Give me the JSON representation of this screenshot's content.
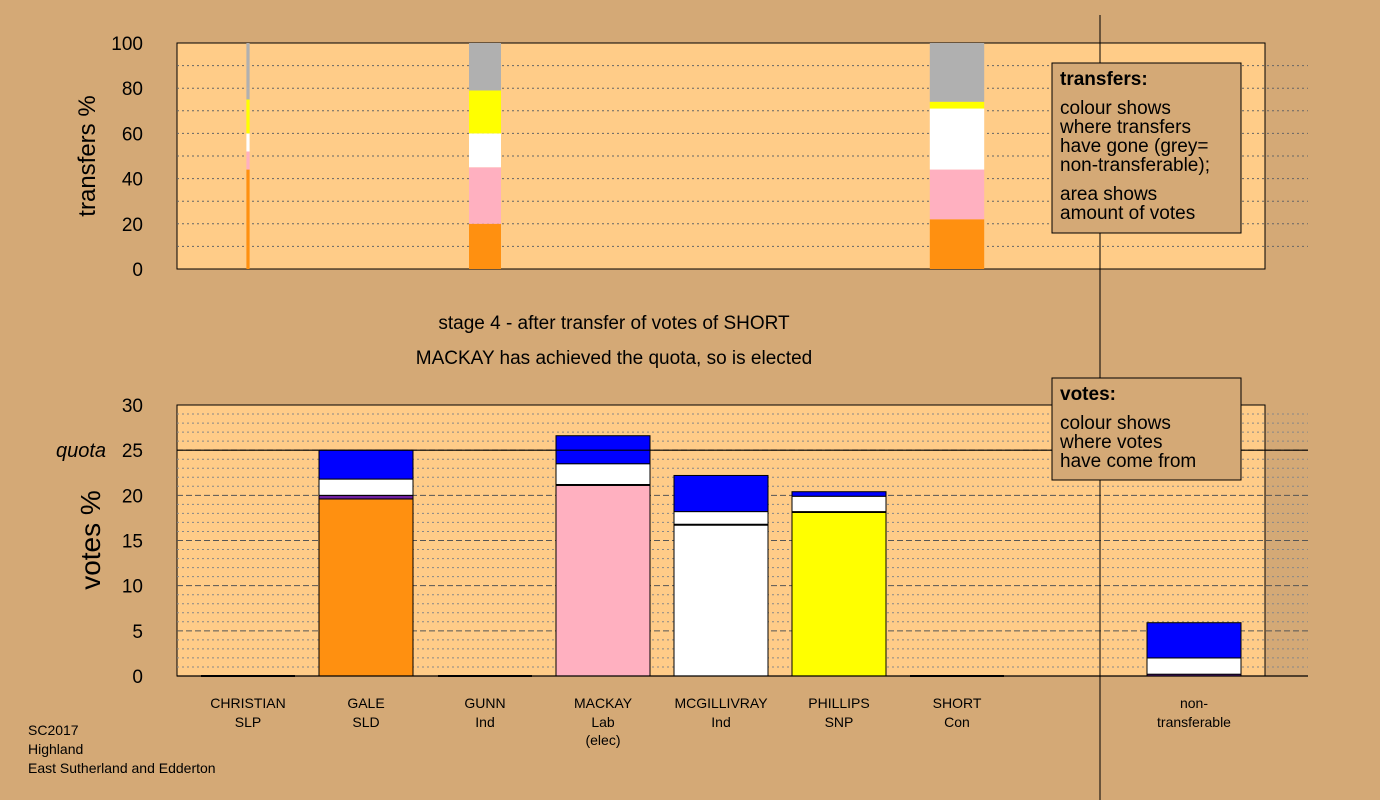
{
  "colors": {
    "page_bg": "#d4a976",
    "plot_bg": "#ffcc88",
    "Lab": "#ffb0c0",
    "SLD": "#ff9010",
    "SNP": "#ffff00",
    "Ind": "#ffffff",
    "Con": "#0000ff",
    "SLP": "#7020a0",
    "nontransferable": "#b0b0b0"
  },
  "footer": [
    "SC2017",
    "Highland",
    "East Sutherland and Edderton"
  ],
  "stage_line1": "stage 4 - after transfer of votes of SHORT",
  "stage_line2": "MACKAY has achieved the quota, so is elected",
  "legend_transfers": {
    "title": "transfers:",
    "lines": [
      "colour shows",
      "where transfers",
      "have gone (grey=",
      "non-transferable);",
      "area shows",
      "amount of votes"
    ]
  },
  "legend_votes": {
    "title": "votes:",
    "lines": [
      "colour shows",
      "where votes",
      "have come from"
    ]
  },
  "chart_data": [
    {
      "type": "bar",
      "stacked": true,
      "ylabel": "transfers %",
      "ylim": [
        0,
        100
      ],
      "yticks": [
        0,
        20,
        40,
        60,
        80,
        100
      ],
      "grid": true,
      "note": "bar width shows amount of votes transferred",
      "bars": [
        {
          "category": "CHRISTIAN",
          "relative_width": 0.1,
          "segments": [
            {
              "to": "GALE",
              "color": "SLD",
              "value": 44
            },
            {
              "to": "MACKAY",
              "color": "Lab",
              "value": 8
            },
            {
              "to": "MCGILLIVRAY",
              "color": "Ind",
              "value": 8
            },
            {
              "to": "PHILLIPS",
              "color": "SNP",
              "value": 15
            },
            {
              "to": "non-transferable",
              "color": "nontransferable",
              "value": 25
            }
          ]
        },
        {
          "category": "GUNN",
          "relative_width": 1,
          "segments": [
            {
              "to": "GALE",
              "color": "SLD",
              "value": 20
            },
            {
              "to": "MACKAY",
              "color": "Lab",
              "value": 25
            },
            {
              "to": "MCGILLIVRAY",
              "color": "Ind",
              "value": 15
            },
            {
              "to": "PHILLIPS",
              "color": "SNP",
              "value": 19
            },
            {
              "to": "non-transferable",
              "color": "nontransferable",
              "value": 21
            }
          ]
        },
        {
          "category": "SHORT",
          "relative_width": 1.7,
          "segments": [
            {
              "to": "GALE",
              "color": "SLD",
              "value": 22
            },
            {
              "to": "MACKAY",
              "color": "Lab",
              "value": 22
            },
            {
              "to": "MCGILLIVRAY",
              "color": "Ind",
              "value": 27
            },
            {
              "to": "PHILLIPS",
              "color": "SNP",
              "value": 3
            },
            {
              "to": "non-transferable",
              "color": "nontransferable",
              "value": 26
            }
          ]
        }
      ]
    },
    {
      "type": "bar",
      "stacked": true,
      "ylabel": "votes %",
      "ylim": [
        0,
        30
      ],
      "yticks": [
        0,
        5,
        10,
        15,
        20,
        25,
        30
      ],
      "quota": 25,
      "quota_label": "quota",
      "grid": true,
      "categories": [
        {
          "name": "CHRISTIAN",
          "party": "SLP",
          "extra": ""
        },
        {
          "name": "GALE",
          "party": "SLD",
          "extra": ""
        },
        {
          "name": "GUNN",
          "party": "Ind",
          "extra": ""
        },
        {
          "name": "MACKAY",
          "party": "Lab",
          "extra": "(elec)"
        },
        {
          "name": "MCGILLIVRAY",
          "party": "Ind",
          "extra": ""
        },
        {
          "name": "PHILLIPS",
          "party": "SNP",
          "extra": ""
        },
        {
          "name": "SHORT",
          "party": "Con",
          "extra": ""
        },
        {
          "name": "non-",
          "party": "transferable",
          "extra": ""
        }
      ],
      "bars": [
        {
          "category": "CHRISTIAN",
          "segments": []
        },
        {
          "category": "GALE",
          "segments": [
            {
              "from": "GALE",
              "color": "SLD",
              "value": 19.6
            },
            {
              "from": "CHRISTIAN",
              "color": "SLP",
              "value": 0.4
            },
            {
              "from": "GUNN",
              "color": "Ind",
              "value": 1.8
            },
            {
              "from": "SHORT",
              "color": "Con",
              "value": 3.2
            }
          ]
        },
        {
          "category": "GUNN",
          "segments": []
        },
        {
          "category": "MACKAY",
          "segments": [
            {
              "from": "MACKAY",
              "color": "Lab",
              "value": 21.1
            },
            {
              "from": "CHRISTIAN",
              "color": "SLP",
              "value": 0.1
            },
            {
              "from": "GUNN",
              "color": "Ind",
              "value": 2.3
            },
            {
              "from": "SHORT",
              "color": "Con",
              "value": 3.1
            }
          ]
        },
        {
          "category": "MCGILLIVRAY",
          "segments": [
            {
              "from": "MCGILLIVRAY",
              "color": "Ind",
              "value": 16.7
            },
            {
              "from": "CHRISTIAN",
              "color": "SLP",
              "value": 0.1
            },
            {
              "from": "GUNN",
              "color": "Ind",
              "value": 1.4
            },
            {
              "from": "SHORT",
              "color": "Con",
              "value": 4.0
            }
          ]
        },
        {
          "category": "PHILLIPS",
          "segments": [
            {
              "from": "PHILLIPS",
              "color": "SNP",
              "value": 18.1
            },
            {
              "from": "CHRISTIAN",
              "color": "SLP",
              "value": 0.1
            },
            {
              "from": "GUNN",
              "color": "Ind",
              "value": 1.7
            },
            {
              "from": "SHORT",
              "color": "Con",
              "value": 0.5
            }
          ]
        },
        {
          "category": "SHORT",
          "segments": []
        },
        {
          "category": "non-transferable",
          "segments": [
            {
              "from": "CHRISTIAN",
              "color": "SLP",
              "value": 0.2
            },
            {
              "from": "GUNN",
              "color": "Ind",
              "value": 1.8
            },
            {
              "from": "SHORT",
              "color": "Con",
              "value": 3.9
            }
          ]
        }
      ]
    }
  ]
}
